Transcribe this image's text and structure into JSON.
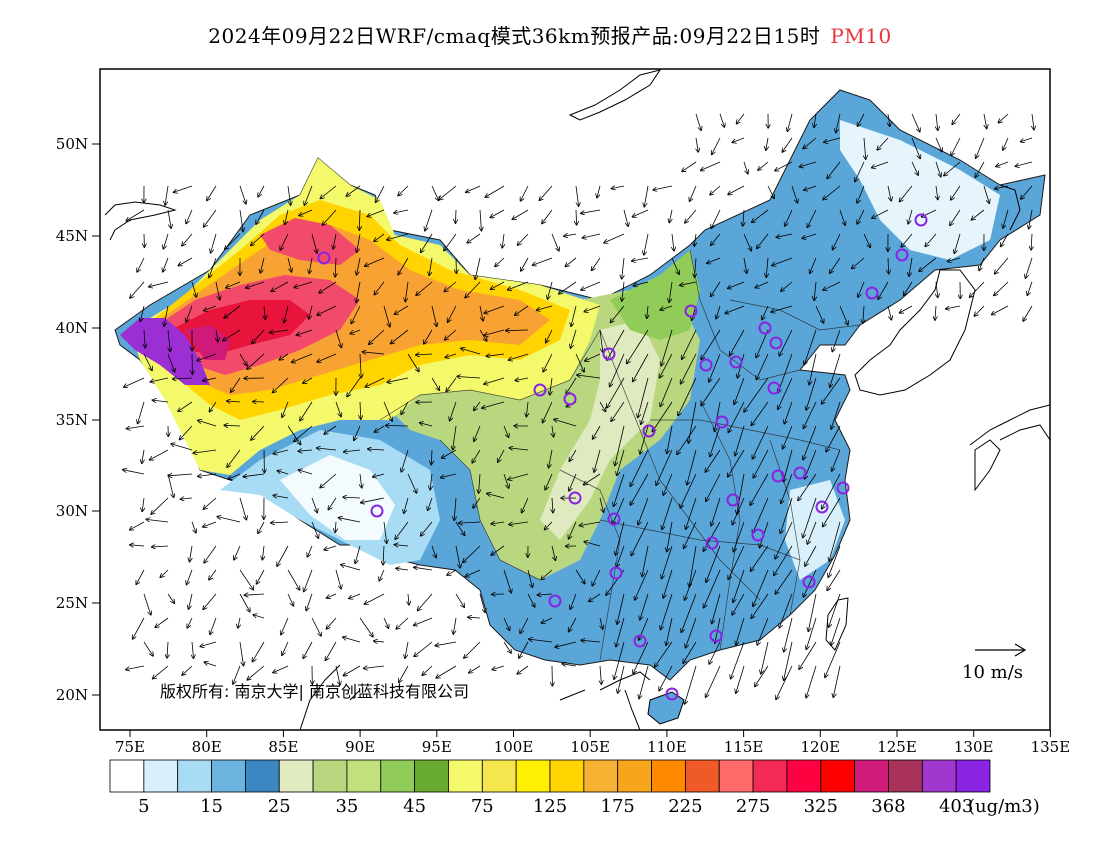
{
  "header": {
    "title": "2024年09月22日WRF/cmaq模式36km预报产品:09月22日15时",
    "pollutant": "PM10"
  },
  "axes": {
    "lat_labels": [
      "50N",
      "45N",
      "40N",
      "35N",
      "30N",
      "25N",
      "20N"
    ],
    "lon_labels": [
      "75E",
      "80E",
      "85E",
      "90E",
      "95E",
      "100E",
      "105E",
      "110E",
      "115E",
      "120E",
      "125E",
      "130E",
      "135E"
    ]
  },
  "legend": {
    "colors": [
      "#ffffff",
      "#d9f0fb",
      "#a8dcf5",
      "#6cb4e0",
      "#3c87c2",
      "#dfeac0",
      "#b9d77f",
      "#c2e07c",
      "#92cc58",
      "#6aab34",
      "#f3f96b",
      "#f4e64c",
      "#ffef00",
      "#ffd400",
      "#f7b233",
      "#f6a51d",
      "#ff8a00",
      "#f05a28",
      "#ff6a6a",
      "#f22a55",
      "#ff0040",
      "#ff0000",
      "#cf1a7a",
      "#a8325a",
      "#a038d0",
      "#8a24e2"
    ],
    "tick_labels": [
      "5",
      "15",
      "25",
      "35",
      "45",
      "75",
      "125",
      "175",
      "225",
      "275",
      "325",
      "368",
      "403"
    ],
    "unit": "(ug/m3)"
  },
  "reference_vector": {
    "label": "10 m/s"
  },
  "copyright": {
    "text": "版权所有: 南京大学| 南京创蓝科技有限公司"
  }
}
